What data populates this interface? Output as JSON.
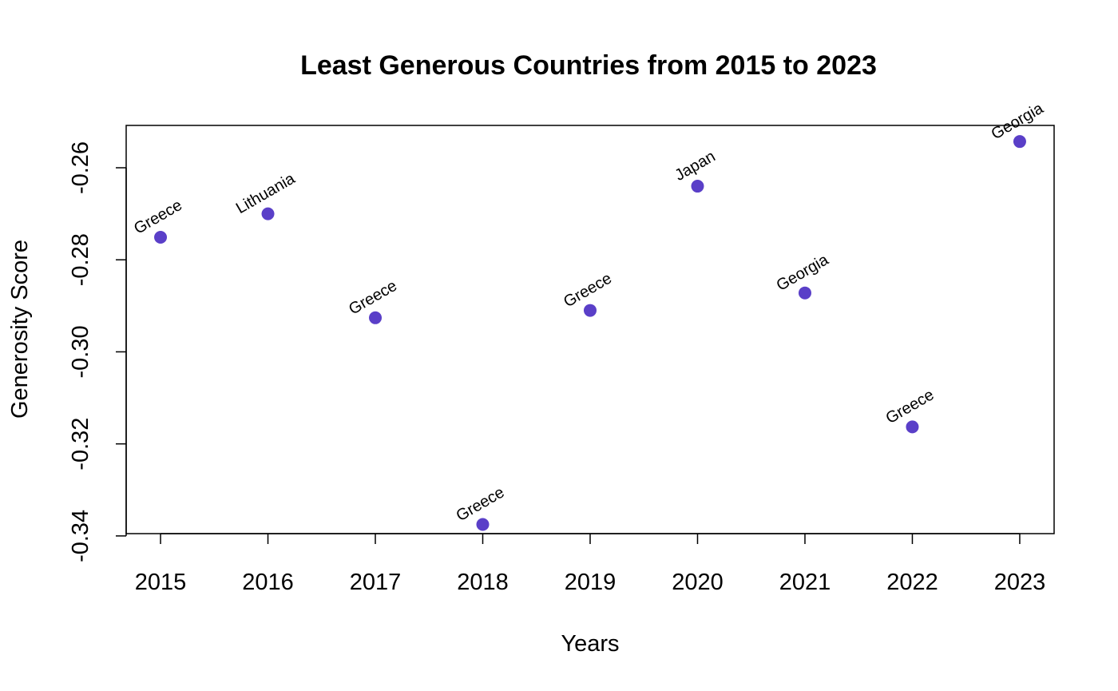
{
  "chart_data": {
    "type": "scatter",
    "title": "Least Generous Countries from 2015 to 2023",
    "xlabel": "Years",
    "ylabel": "Generosity Score",
    "x": [
      2015,
      2016,
      2017,
      2018,
      2019,
      2020,
      2021,
      2022,
      2023
    ],
    "values": [
      -0.2751,
      -0.27,
      -0.2926,
      -0.3375,
      -0.291,
      -0.264,
      -0.2872,
      -0.3163,
      -0.2543
    ],
    "point_labels": [
      "Greece",
      "Lithuania",
      "Greece",
      "Greece",
      "Greece",
      "Japan",
      "Georgia",
      "Greece",
      "Georgia"
    ],
    "x_ticks": [
      "2015",
      "2016",
      "2017",
      "2018",
      "2019",
      "2020",
      "2021",
      "2022",
      "2023"
    ],
    "y_ticks": [
      -0.34,
      -0.32,
      -0.3,
      -0.28,
      -0.26
    ],
    "y_tick_labels": [
      "-0.34",
      "-0.32",
      "-0.30",
      "-0.28",
      "-0.26"
    ],
    "xlim": [
      2014.68,
      2023.32
    ],
    "ylim": [
      -0.3395,
      -0.2508
    ],
    "point_color": "#5a3fc8",
    "grid": false
  }
}
